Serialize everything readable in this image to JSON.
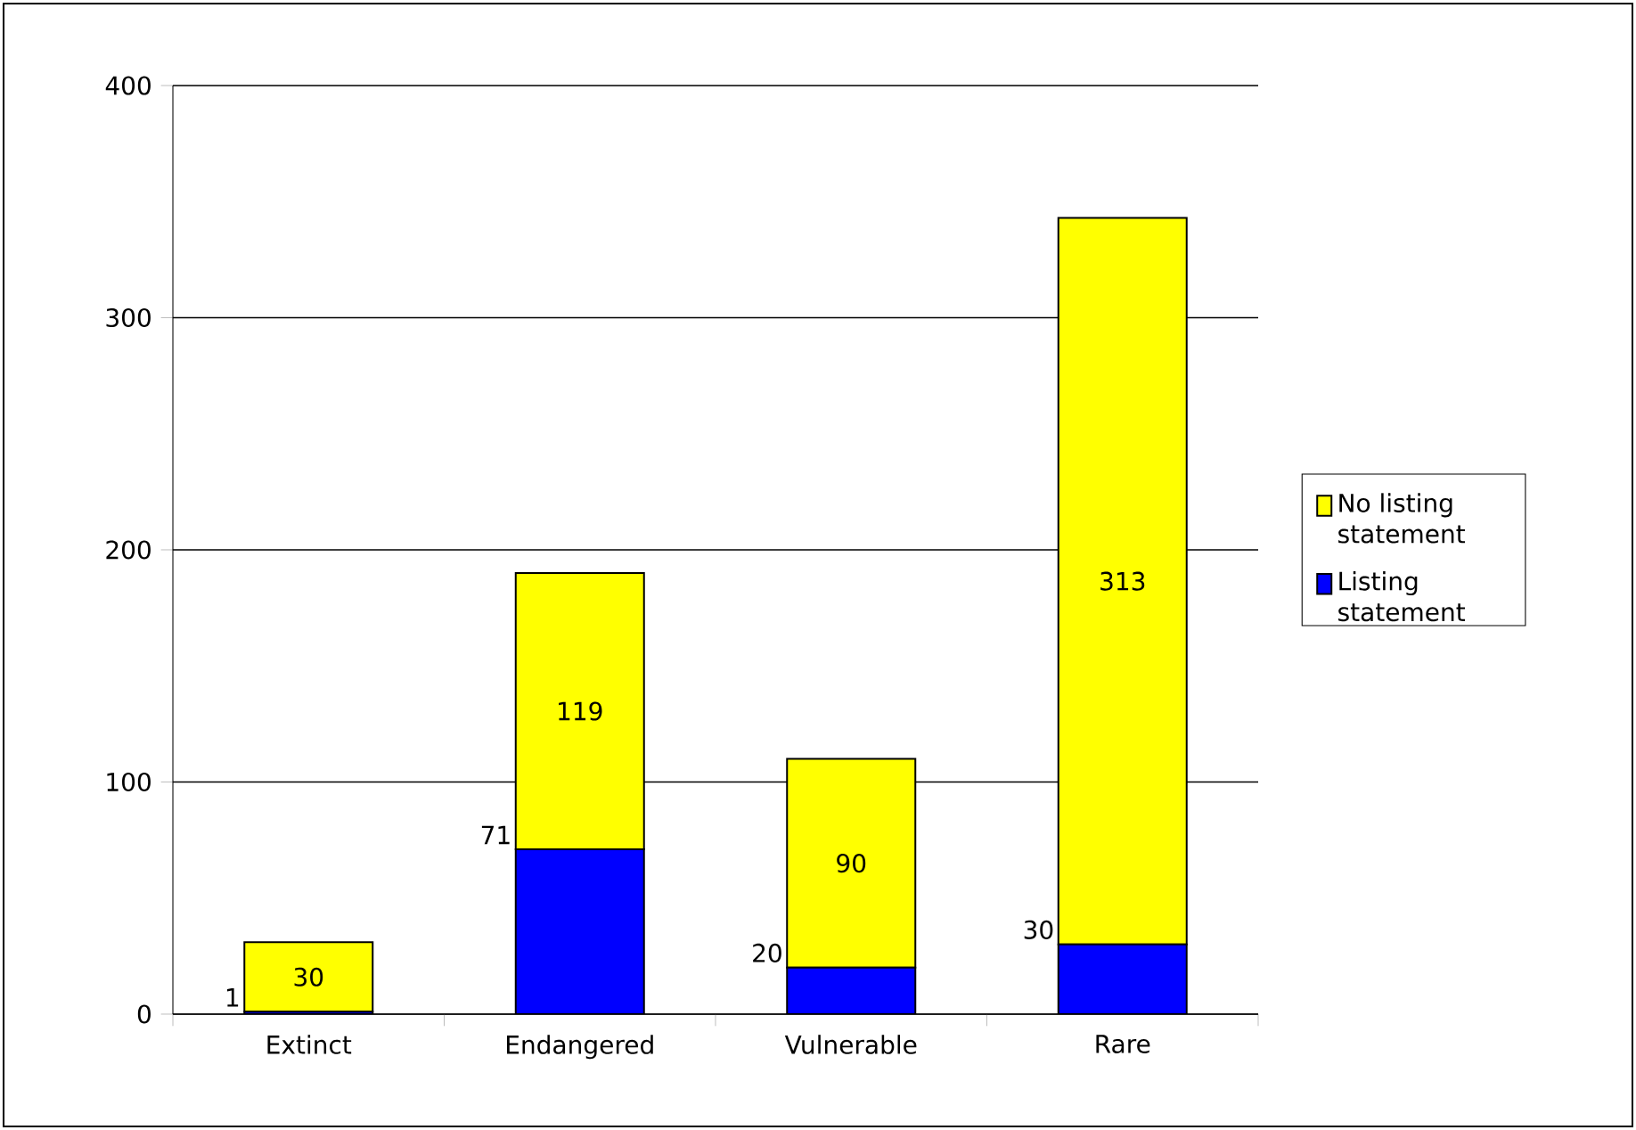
{
  "chart_data": {
    "type": "bar",
    "stacked": true,
    "categories": [
      "Extinct",
      "Endangered",
      "Vulnerable",
      "Rare"
    ],
    "series": [
      {
        "name": "Listing statement",
        "color": "#0000ff",
        "values": [
          1,
          71,
          20,
          30
        ]
      },
      {
        "name": "No listing statement",
        "color": "#ffff00",
        "values": [
          30,
          119,
          90,
          313
        ]
      }
    ],
    "ylim": [
      0,
      400
    ],
    "yticks": [
      0,
      100,
      200,
      300,
      400
    ],
    "grid": "y",
    "legend": "right",
    "data_labels": true
  }
}
